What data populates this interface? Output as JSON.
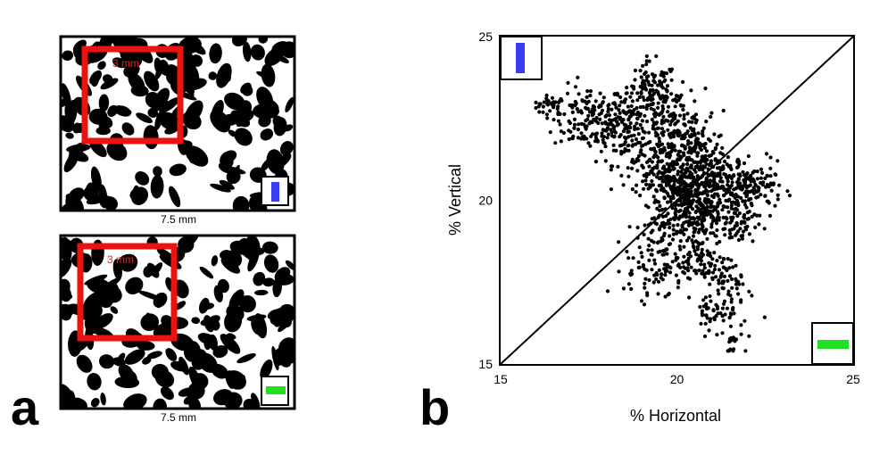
{
  "panel_a": {
    "letter": "a",
    "top_image": {
      "roi_label": "3 mm",
      "scale_label": "7.5 mm",
      "indicator": {
        "orientation": "vertical",
        "color": "#3a3cf0"
      }
    },
    "bottom_image": {
      "roi_label": "3 mm",
      "scale_label": "7.5 mm",
      "indicator": {
        "orientation": "horizontal",
        "color": "#22e022"
      }
    },
    "roi_color": "#ee1111"
  },
  "panel_b": {
    "letter": "b"
  },
  "chart_data": {
    "type": "scatter",
    "title": "",
    "xlabel": "% Horizontal",
    "ylabel": "% Vertical",
    "xlim": [
      15,
      25
    ],
    "ylim": [
      15,
      25
    ],
    "xticks": [
      "15",
      "20",
      "25"
    ],
    "yticks": [
      "15",
      "20",
      "25"
    ],
    "grid": false,
    "reference_line": {
      "from": [
        15,
        15
      ],
      "to": [
        25,
        25
      ]
    },
    "legend_insets": [
      {
        "position": "top-left",
        "orientation": "vertical",
        "color": "#3a3cf0"
      },
      {
        "position": "bottom-right",
        "orientation": "horizontal",
        "color": "#22e022"
      }
    ],
    "clusters": [
      {
        "cx": 16.4,
        "cy": 22.9,
        "sx": 0.25,
        "sy": 0.15,
        "n": 30
      },
      {
        "cx": 17.5,
        "cy": 22.5,
        "sx": 0.5,
        "sy": 0.5,
        "n": 140
      },
      {
        "cx": 18.6,
        "cy": 22.2,
        "sx": 0.45,
        "sy": 0.55,
        "n": 160
      },
      {
        "cx": 19.3,
        "cy": 23.3,
        "sx": 0.35,
        "sy": 0.45,
        "n": 110
      },
      {
        "cx": 19.9,
        "cy": 22.3,
        "sx": 0.45,
        "sy": 0.55,
        "n": 150
      },
      {
        "cx": 20.6,
        "cy": 21.6,
        "sx": 0.4,
        "sy": 0.45,
        "n": 100
      },
      {
        "cx": 19.6,
        "cy": 21.0,
        "sx": 0.45,
        "sy": 0.45,
        "n": 140
      },
      {
        "cx": 20.2,
        "cy": 20.3,
        "sx": 0.45,
        "sy": 0.4,
        "n": 190
      },
      {
        "cx": 21.2,
        "cy": 20.6,
        "sx": 0.45,
        "sy": 0.4,
        "n": 170
      },
      {
        "cx": 22.2,
        "cy": 20.4,
        "sx": 0.4,
        "sy": 0.35,
        "n": 110
      },
      {
        "cx": 20.7,
        "cy": 19.6,
        "sx": 0.45,
        "sy": 0.4,
        "n": 150
      },
      {
        "cx": 19.6,
        "cy": 19.2,
        "sx": 0.4,
        "sy": 0.5,
        "n": 90
      },
      {
        "cx": 21.7,
        "cy": 19.3,
        "sx": 0.3,
        "sy": 0.4,
        "n": 70
      },
      {
        "cx": 19.2,
        "cy": 17.9,
        "sx": 0.35,
        "sy": 0.45,
        "n": 60
      },
      {
        "cx": 20.6,
        "cy": 18.1,
        "sx": 0.5,
        "sy": 0.45,
        "n": 110
      },
      {
        "cx": 21.5,
        "cy": 17.4,
        "sx": 0.35,
        "sy": 0.45,
        "n": 50
      },
      {
        "cx": 21.1,
        "cy": 16.6,
        "sx": 0.3,
        "sy": 0.35,
        "n": 40
      },
      {
        "cx": 21.6,
        "cy": 15.8,
        "sx": 0.2,
        "sy": 0.25,
        "n": 20
      }
    ],
    "x_range_observed": [
      16.0,
      23.2
    ],
    "y_range_observed": [
      15.4,
      24.4
    ]
  }
}
